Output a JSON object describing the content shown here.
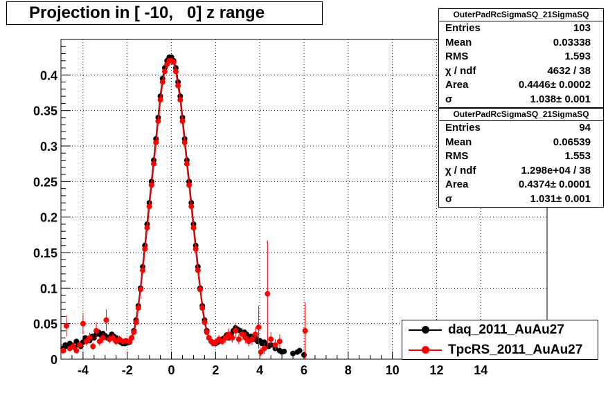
{
  "title": "Projection in [ -10,   0] z range",
  "stats": [
    {
      "name": "OuterPadRcSigmaSQ_21SigmaSQ",
      "rows": [
        {
          "label": "Entries",
          "value": "103"
        },
        {
          "label": "Mean",
          "value": "0.03338"
        },
        {
          "label": "RMS",
          "value": "1.593"
        },
        {
          "label": "χ  / ndf",
          "value": "4632 / 38"
        },
        {
          "label": "Area",
          "value": "0.4446± 0.0002"
        },
        {
          "label": "σ",
          "value": "1.038± 0.001"
        }
      ]
    },
    {
      "name": "OuterPadRcSigmaSQ_21SigmaSQ",
      "rows": [
        {
          "label": "Entries",
          "value": "94"
        },
        {
          "label": "Mean",
          "value": "0.06539"
        },
        {
          "label": "RMS",
          "value": "1.553"
        },
        {
          "label": "χ  / ndf",
          "value": "1.298e+04 / 38"
        },
        {
          "label": "Area",
          "value": "0.4374± 0.0001"
        },
        {
          "label": "σ",
          "value": "1.031± 0.001"
        }
      ]
    }
  ],
  "legend": [
    {
      "label": "daq_2011_AuAu27",
      "color": "#000000"
    },
    {
      "label": "TpcRS_2011_AuAu27",
      "color": "#ff0000"
    }
  ],
  "chart_data": {
    "type": "scatter",
    "xlim": [
      -5,
      17
    ],
    "ylim": [
      0,
      0.45
    ],
    "x_ticks": [
      -4,
      -2,
      0,
      2,
      4,
      6,
      8,
      10,
      12,
      14
    ],
    "x_tick_labels": [
      "-4",
      "-2",
      "0",
      "2",
      "4",
      "6",
      "8",
      "10",
      "12",
      "14"
    ],
    "y_ticks": [
      0,
      0.05,
      0.1,
      0.15,
      0.2,
      0.25,
      0.3,
      0.35,
      0.4
    ],
    "y_tick_labels": [
      "0",
      "0.05",
      "0.1",
      "0.15",
      "0.2",
      "0.25",
      "0.3",
      "0.35",
      "0.4"
    ],
    "grid": true,
    "legend_position": "bottom-right",
    "series": [
      {
        "name": "daq_2011_AuAu27",
        "color": "#000000",
        "x": [
          -4.9,
          -4.8,
          -4.7,
          -4.6,
          -4.5,
          -4.4,
          -4.3,
          -4.2,
          -4.1,
          -4.0,
          -3.9,
          -3.8,
          -3.7,
          -3.6,
          -3.5,
          -3.4,
          -3.3,
          -3.2,
          -3.1,
          -3.0,
          -2.9,
          -2.8,
          -2.7,
          -2.6,
          -2.5,
          -2.4,
          -2.3,
          -2.2,
          -2.1,
          -2.0,
          -1.9,
          -1.8,
          -1.7,
          -1.6,
          -1.5,
          -1.4,
          -1.3,
          -1.2,
          -1.1,
          -1.0,
          -0.9,
          -0.8,
          -0.7,
          -0.6,
          -0.5,
          -0.4,
          -0.3,
          -0.2,
          -0.1,
          0.0,
          0.1,
          0.2,
          0.3,
          0.4,
          0.5,
          0.6,
          0.7,
          0.8,
          0.9,
          1.0,
          1.1,
          1.2,
          1.3,
          1.4,
          1.5,
          1.6,
          1.7,
          1.8,
          1.9,
          2.0,
          2.1,
          2.2,
          2.3,
          2.4,
          2.5,
          2.6,
          2.7,
          2.8,
          2.9,
          3.0,
          3.1,
          3.2,
          3.3,
          3.4,
          3.5,
          3.6,
          3.7,
          3.8,
          3.9,
          4.0,
          4.1,
          4.2,
          4.3,
          4.4,
          4.5,
          4.7,
          4.9,
          5.0,
          5.1,
          5.5,
          5.7,
          5.8,
          6.0
        ],
        "y": [
          0.015,
          0.02,
          0.018,
          0.022,
          0.02,
          0.017,
          0.025,
          0.02,
          0.018,
          0.024,
          0.03,
          0.028,
          0.026,
          0.032,
          0.03,
          0.035,
          0.038,
          0.034,
          0.036,
          0.033,
          0.03,
          0.031,
          0.035,
          0.032,
          0.03,
          0.026,
          0.024,
          0.022,
          0.022,
          0.023,
          0.024,
          0.03,
          0.04,
          0.055,
          0.075,
          0.1,
          0.13,
          0.16,
          0.19,
          0.22,
          0.25,
          0.28,
          0.31,
          0.34,
          0.37,
          0.395,
          0.41,
          0.42,
          0.425,
          0.425,
          0.42,
          0.41,
          0.39,
          0.37,
          0.34,
          0.31,
          0.28,
          0.25,
          0.22,
          0.19,
          0.16,
          0.13,
          0.1,
          0.075,
          0.055,
          0.04,
          0.03,
          0.025,
          0.022,
          0.022,
          0.024,
          0.026,
          0.028,
          0.03,
          0.034,
          0.03,
          0.035,
          0.04,
          0.044,
          0.042,
          0.04,
          0.036,
          0.038,
          0.035,
          0.03,
          0.032,
          0.028,
          0.03,
          0.025,
          0.026,
          0.022,
          0.024,
          0.02,
          0.018,
          0.02,
          0.015,
          0.012,
          0.01,
          0.011,
          0.008,
          0.01,
          0.012,
          0.006
        ]
      },
      {
        "name": "TpcRS_2011_AuAu27",
        "color": "#ff0000",
        "x": [
          -4.9,
          -4.75,
          -4.6,
          -4.45,
          -4.3,
          -4.15,
          -4.0,
          -3.85,
          -3.7,
          -3.55,
          -3.4,
          -3.25,
          -3.1,
          -2.95,
          -2.8,
          -2.65,
          -2.5,
          -2.35,
          -2.2,
          -2.05,
          -1.9,
          -1.8,
          -1.7,
          -1.6,
          -1.5,
          -1.4,
          -1.3,
          -1.2,
          -1.1,
          -1.0,
          -0.9,
          -0.8,
          -0.7,
          -0.6,
          -0.5,
          -0.4,
          -0.3,
          -0.2,
          -0.1,
          0.0,
          0.1,
          0.2,
          0.3,
          0.4,
          0.5,
          0.6,
          0.7,
          0.8,
          0.9,
          1.0,
          1.1,
          1.2,
          1.3,
          1.4,
          1.5,
          1.6,
          1.7,
          1.8,
          1.9,
          2.0,
          2.15,
          2.3,
          2.45,
          2.6,
          2.75,
          2.9,
          3.05,
          3.2,
          3.35,
          3.5,
          3.65,
          3.8,
          3.95,
          4.05,
          4.2,
          4.35,
          4.5,
          4.7,
          4.9,
          6.05
        ],
        "y": [
          0.012,
          0.047,
          0.015,
          0.018,
          0.012,
          0.02,
          0.05,
          0.025,
          0.03,
          0.018,
          0.04,
          0.025,
          0.03,
          0.055,
          0.028,
          0.03,
          0.025,
          0.028,
          0.025,
          0.026,
          0.025,
          0.03,
          0.038,
          0.052,
          0.072,
          0.098,
          0.125,
          0.155,
          0.185,
          0.215,
          0.245,
          0.275,
          0.305,
          0.335,
          0.365,
          0.39,
          0.405,
          0.415,
          0.42,
          0.42,
          0.418,
          0.405,
          0.385,
          0.365,
          0.335,
          0.305,
          0.275,
          0.245,
          0.215,
          0.185,
          0.155,
          0.125,
          0.098,
          0.072,
          0.052,
          0.038,
          0.03,
          0.025,
          0.022,
          0.024,
          0.028,
          0.025,
          0.03,
          0.035,
          0.03,
          0.04,
          0.028,
          0.035,
          0.03,
          0.025,
          0.028,
          0.035,
          0.045,
          0.01,
          0.015,
          0.092,
          0.028,
          0.02,
          0.025,
          0.04
        ],
        "yerr": [
          0.004,
          0.015,
          0.004,
          0.005,
          0.004,
          0.006,
          0.015,
          0.006,
          0.007,
          0.005,
          0.012,
          0.006,
          0.007,
          0.015,
          0.006,
          0.006,
          0.005,
          0.005,
          0.004,
          0.004,
          0.004,
          0.004,
          0.004,
          0.004,
          0.004,
          0.004,
          0.004,
          0.004,
          0.004,
          0.004,
          0.004,
          0.004,
          0.004,
          0.004,
          0.004,
          0.004,
          0.004,
          0.004,
          0.004,
          0.004,
          0.004,
          0.004,
          0.004,
          0.004,
          0.004,
          0.004,
          0.004,
          0.004,
          0.004,
          0.004,
          0.004,
          0.004,
          0.004,
          0.004,
          0.004,
          0.004,
          0.004,
          0.004,
          0.004,
          0.005,
          0.006,
          0.005,
          0.007,
          0.008,
          0.007,
          0.01,
          0.007,
          0.009,
          0.008,
          0.007,
          0.008,
          0.01,
          0.03,
          0.006,
          0.008,
          0.075,
          0.01,
          0.008,
          0.01,
          0.04
        ]
      }
    ]
  }
}
